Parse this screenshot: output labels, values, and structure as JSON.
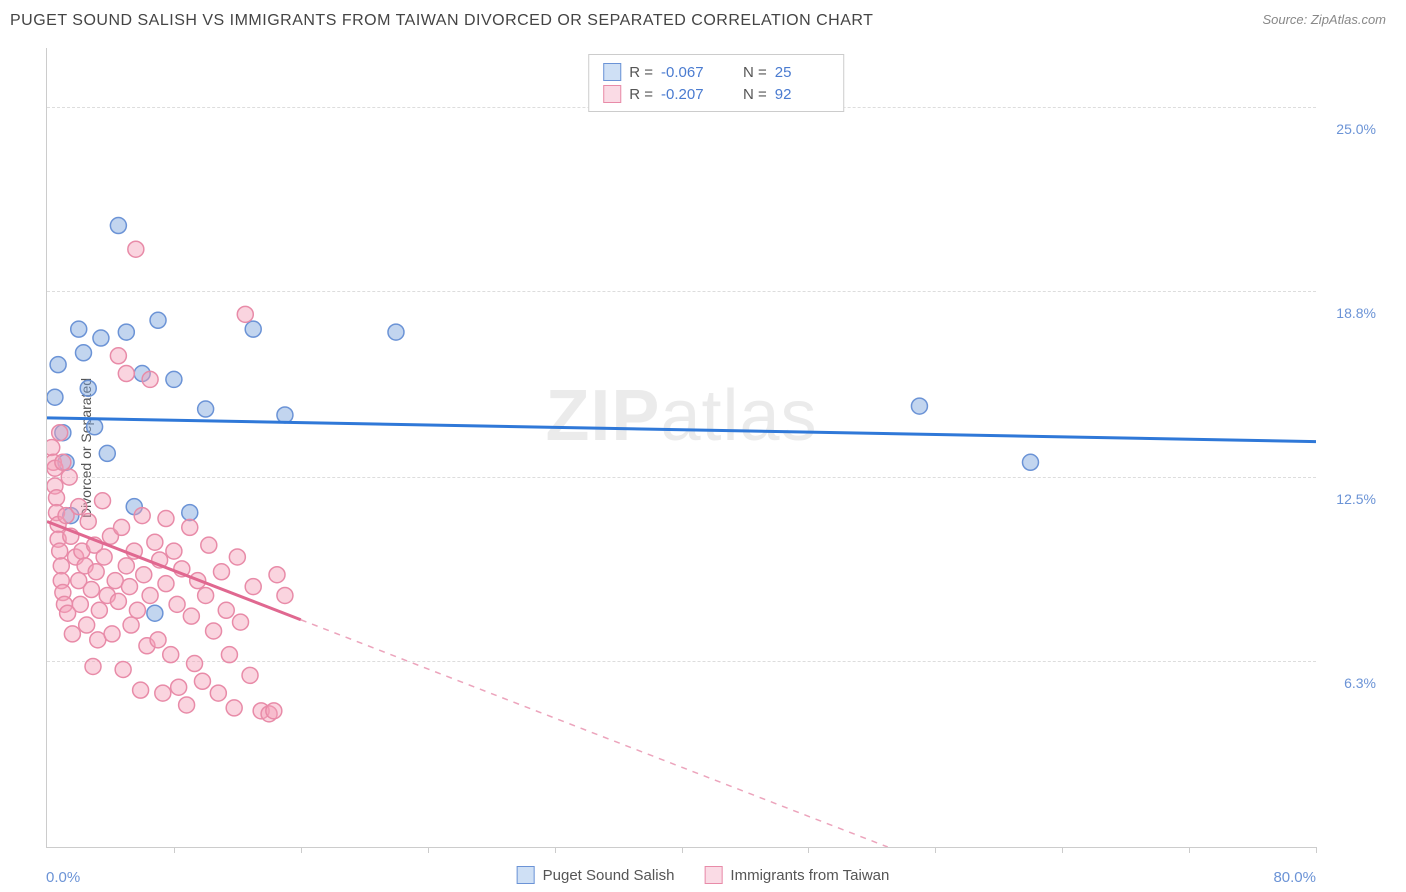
{
  "title": "PUGET SOUND SALISH VS IMMIGRANTS FROM TAIWAN DIVORCED OR SEPARATED CORRELATION CHART",
  "source": "Source: ZipAtlas.com",
  "watermark_a": "ZIP",
  "watermark_b": "atlas",
  "chart": {
    "type": "scatter",
    "xlim": [
      0,
      80
    ],
    "ylim": [
      0,
      27
    ],
    "x_min_label": "0.0%",
    "x_max_label": "80.0%",
    "y_ticks": [
      {
        "v": 6.3,
        "label": "6.3%"
      },
      {
        "v": 12.5,
        "label": "12.5%"
      },
      {
        "v": 18.8,
        "label": "18.8%"
      },
      {
        "v": 25.0,
        "label": "25.0%"
      }
    ],
    "x_tick_positions": [
      8,
      16,
      24,
      32,
      40,
      48,
      56,
      64,
      72,
      80
    ],
    "y_axis_title": "Divorced or Separated",
    "background_color": "#ffffff",
    "grid_color": "#dddddd",
    "axis_color": "#cccccc",
    "series": [
      {
        "name": "Puget Sound Salish",
        "color_fill": "rgba(120,162,219,0.45)",
        "color_stroke": "#6b93d6",
        "line_color": "#2f78d8",
        "r_value": "-0.067",
        "n_value": "25",
        "swatch_fill": "#cfe0f5",
        "swatch_border": "#6b93d6",
        "trend": {
          "x1": 0,
          "y1": 14.5,
          "x2": 80,
          "y2": 13.7,
          "solid_until_x": 80
        },
        "points": [
          [
            0.5,
            15.2
          ],
          [
            0.7,
            16.3
          ],
          [
            1.0,
            14.0
          ],
          [
            1.2,
            13.0
          ],
          [
            1.5,
            11.2
          ],
          [
            2.0,
            17.5
          ],
          [
            2.3,
            16.7
          ],
          [
            2.6,
            15.5
          ],
          [
            3.0,
            14.2
          ],
          [
            3.4,
            17.2
          ],
          [
            3.8,
            13.3
          ],
          [
            4.5,
            21.0
          ],
          [
            5.0,
            17.4
          ],
          [
            5.5,
            11.5
          ],
          [
            6.0,
            16.0
          ],
          [
            6.8,
            7.9
          ],
          [
            7.0,
            17.8
          ],
          [
            8.0,
            15.8
          ],
          [
            9.0,
            11.3
          ],
          [
            10.0,
            14.8
          ],
          [
            13.0,
            17.5
          ],
          [
            15.0,
            14.6
          ],
          [
            22.0,
            17.4
          ],
          [
            55.0,
            14.9
          ],
          [
            62.0,
            13.0
          ]
        ]
      },
      {
        "name": "Immigrants from Taiwan",
        "color_fill": "rgba(244,160,185,0.45)",
        "color_stroke": "#e88ba8",
        "line_color": "#e06890",
        "r_value": "-0.207",
        "n_value": "92",
        "swatch_fill": "#fadbe5",
        "swatch_border": "#e88ba8",
        "trend": {
          "x1": 0,
          "y1": 11.0,
          "x2": 53,
          "y2": 0,
          "solid_until_x": 16
        },
        "points": [
          [
            0.3,
            13.5
          ],
          [
            0.4,
            13.0
          ],
          [
            0.5,
            12.8
          ],
          [
            0.5,
            12.2
          ],
          [
            0.6,
            11.8
          ],
          [
            0.6,
            11.3
          ],
          [
            0.7,
            10.9
          ],
          [
            0.7,
            10.4
          ],
          [
            0.8,
            14.0
          ],
          [
            0.8,
            10.0
          ],
          [
            0.9,
            9.5
          ],
          [
            0.9,
            9.0
          ],
          [
            1.0,
            8.6
          ],
          [
            1.0,
            13.0
          ],
          [
            1.1,
            8.2
          ],
          [
            1.2,
            11.2
          ],
          [
            1.3,
            7.9
          ],
          [
            1.4,
            12.5
          ],
          [
            1.5,
            10.5
          ],
          [
            1.6,
            7.2
          ],
          [
            1.8,
            9.8
          ],
          [
            2.0,
            11.5
          ],
          [
            2.0,
            9.0
          ],
          [
            2.1,
            8.2
          ],
          [
            2.2,
            10.0
          ],
          [
            2.4,
            9.5
          ],
          [
            2.5,
            7.5
          ],
          [
            2.6,
            11.0
          ],
          [
            2.8,
            8.7
          ],
          [
            2.9,
            6.1
          ],
          [
            3.0,
            10.2
          ],
          [
            3.1,
            9.3
          ],
          [
            3.2,
            7.0
          ],
          [
            3.3,
            8.0
          ],
          [
            3.5,
            11.7
          ],
          [
            3.6,
            9.8
          ],
          [
            3.8,
            8.5
          ],
          [
            4.0,
            10.5
          ],
          [
            4.1,
            7.2
          ],
          [
            4.3,
            9.0
          ],
          [
            4.5,
            16.6
          ],
          [
            4.5,
            8.3
          ],
          [
            4.7,
            10.8
          ],
          [
            4.8,
            6.0
          ],
          [
            5.0,
            9.5
          ],
          [
            5.0,
            16.0
          ],
          [
            5.2,
            8.8
          ],
          [
            5.3,
            7.5
          ],
          [
            5.5,
            10.0
          ],
          [
            5.6,
            20.2
          ],
          [
            5.7,
            8.0
          ],
          [
            5.9,
            5.3
          ],
          [
            6.0,
            11.2
          ],
          [
            6.1,
            9.2
          ],
          [
            6.3,
            6.8
          ],
          [
            6.5,
            8.5
          ],
          [
            6.5,
            15.8
          ],
          [
            6.8,
            10.3
          ],
          [
            7.0,
            7.0
          ],
          [
            7.1,
            9.7
          ],
          [
            7.3,
            5.2
          ],
          [
            7.5,
            8.9
          ],
          [
            7.5,
            11.1
          ],
          [
            7.8,
            6.5
          ],
          [
            8.0,
            10.0
          ],
          [
            8.2,
            8.2
          ],
          [
            8.3,
            5.4
          ],
          [
            8.5,
            9.4
          ],
          [
            8.8,
            4.8
          ],
          [
            9.0,
            10.8
          ],
          [
            9.1,
            7.8
          ],
          [
            9.3,
            6.2
          ],
          [
            9.5,
            9.0
          ],
          [
            9.8,
            5.6
          ],
          [
            10.0,
            8.5
          ],
          [
            10.2,
            10.2
          ],
          [
            10.5,
            7.3
          ],
          [
            10.8,
            5.2
          ],
          [
            11.0,
            9.3
          ],
          [
            11.3,
            8.0
          ],
          [
            11.5,
            6.5
          ],
          [
            11.8,
            4.7
          ],
          [
            12.0,
            9.8
          ],
          [
            12.2,
            7.6
          ],
          [
            12.5,
            18.0
          ],
          [
            12.8,
            5.8
          ],
          [
            13.0,
            8.8
          ],
          [
            13.5,
            4.6
          ],
          [
            14.0,
            4.5
          ],
          [
            14.3,
            4.6
          ],
          [
            14.5,
            9.2
          ],
          [
            15.0,
            8.5
          ]
        ]
      }
    ]
  },
  "legend_top": {
    "r_label": "R =",
    "n_label": "N ="
  },
  "marker_radius": 8,
  "trend_line_width": 3
}
